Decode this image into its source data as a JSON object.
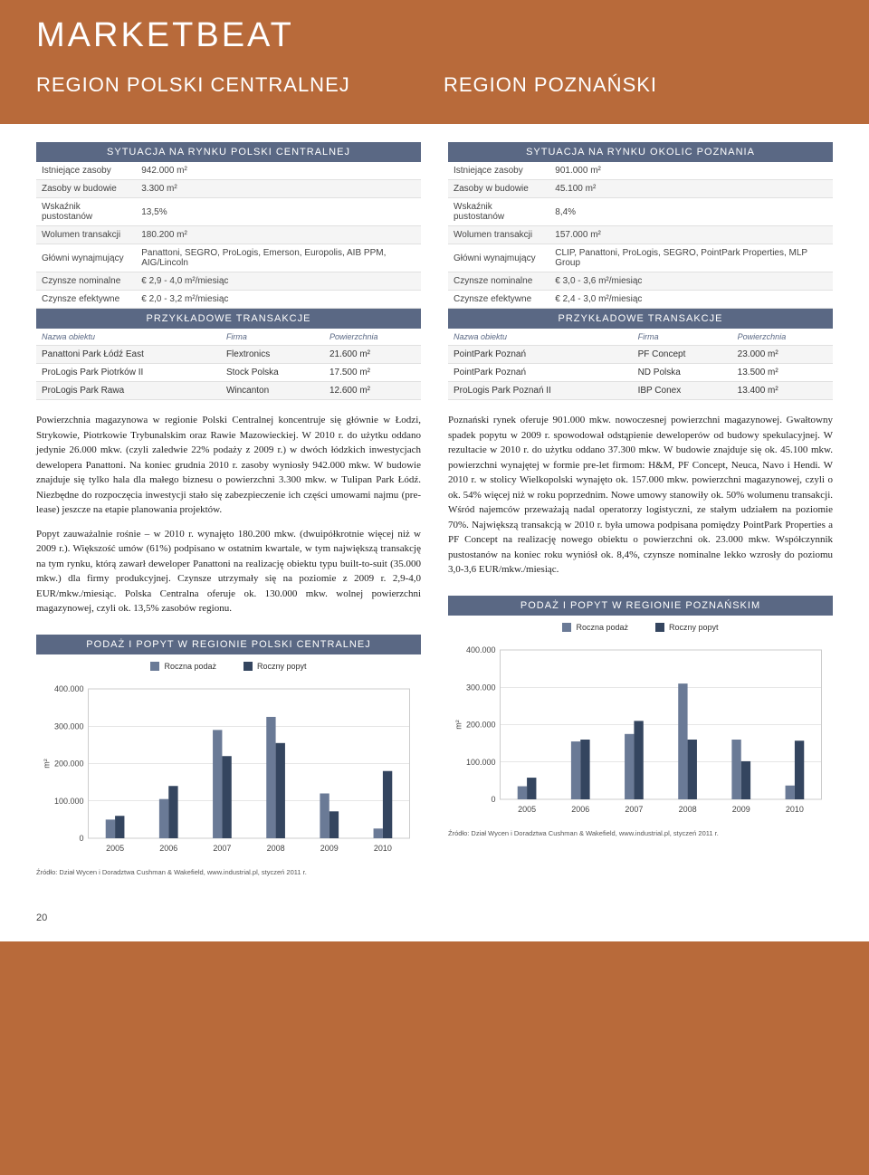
{
  "brand": "MARKETBEAT",
  "region_left_title": "REGION POLSKI CENTRALNEJ",
  "region_right_title": "REGION POZNAŃSKI",
  "page_number": "20",
  "left": {
    "section1_title": "SYTUACJA NA RYNKU POLSKI CENTRALNEJ",
    "stats": [
      {
        "label": "Istniejące zasoby",
        "value": "942.000 m²"
      },
      {
        "label": "Zasoby w budowie",
        "value": "3.300 m²"
      },
      {
        "label": "Wskaźnik pustostanów",
        "value": "13,5%"
      },
      {
        "label": "Wolumen transakcji",
        "value": "180.200 m²"
      },
      {
        "label": "Główni wynajmujący",
        "value": "Panattoni, SEGRO, ProLogis, Emerson, Europolis, AIB PPM, AIG/Lincoln"
      },
      {
        "label": "Czynsze nominalne",
        "value": "€ 2,9 - 4,0 m²/miesiąc"
      },
      {
        "label": "Czynsze efektywne",
        "value": "€ 2,0 - 3,2 m²/miesiąc"
      }
    ],
    "section2_title": "PRZYKŁADOWE TRANSAKCJE",
    "trans_header": {
      "c1": "Nazwa obiektu",
      "c2": "Firma",
      "c3": "Powierzchnia"
    },
    "trans": [
      {
        "c1": "Panattoni Park Łódź East",
        "c2": "Flextronics",
        "c3": "21.600 m²"
      },
      {
        "c1": "ProLogis Park Piotrków II",
        "c2": "Stock Polska",
        "c3": "17.500 m²"
      },
      {
        "c1": "ProLogis Park Rawa",
        "c2": "Wincanton",
        "c3": "12.600 m²"
      }
    ],
    "para1": "Powierzchnia magazynowa w regionie Polski Centralnej koncentruje się głównie w Łodzi, Strykowie, Piotrkowie Trybunalskim oraz Rawie Mazowieckiej. W 2010 r. do użytku oddano jedynie 26.000 mkw. (czyli zaledwie 22% podaży z 2009 r.) w dwóch łódzkich inwestycjach dewelopera Panattoni. Na koniec grudnia 2010 r. zasoby wyniosły 942.000 mkw. W budowie znajduje się tylko hala dla małego biznesu o powierzchni 3.300 mkw. w Tulipan Park Łódź. Niezbędne do rozpoczęcia inwestycji stało się zabezpieczenie ich części umowami najmu (pre-lease) jeszcze na etapie planowania projektów.",
    "para2": "Popyt zauważalnie rośnie – w 2010 r. wynajęto 180.200 mkw. (dwuipółkrotnie więcej niż w 2009 r.). Większość umów (61%) podpisano w ostatnim kwartale, w tym największą transakcję na tym rynku, którą zawarł deweloper Panattoni na realizację obiektu typu built-to-suit (35.000 mkw.) dla firmy produkcyjnej. Czynsze utrzymały się na poziomie z 2009 r. 2,9-4,0 EUR/mkw./miesiąc. Polska Centralna oferuje ok. 130.000 mkw. wolnej powierzchni magazynowej, czyli ok. 13,5% zasobów regionu.",
    "chart_title": "PODAŻ I POPYT W REGIONIE POLSKI CENTRALNEJ",
    "legend1": "Roczna podaż",
    "legend2": "Roczny popyt",
    "chart": {
      "type": "bar",
      "categories": [
        "2005",
        "2006",
        "2007",
        "2008",
        "2009",
        "2010"
      ],
      "supply": [
        50000,
        105000,
        290000,
        325000,
        120000,
        26000
      ],
      "demand": [
        60000,
        140000,
        220000,
        255000,
        72000,
        180000
      ],
      "supply_color": "#6a7a96",
      "demand_color": "#34455f",
      "background": "#ffffff",
      "border_color": "#cccccc",
      "ylim": [
        0,
        400000
      ],
      "ytick_step": 100000,
      "yticklabels": [
        "0",
        "100.000",
        "200.000",
        "300.000",
        "400.000"
      ],
      "ylabel": "m²",
      "bar_width": 0.35
    },
    "footnote": "Źródło: Dział Wycen i Doradztwa Cushman & Wakefield, www.industrial.pl, styczeń 2011 r."
  },
  "right": {
    "section1_title": "SYTUACJA NA RYNKU OKOLIC POZNANIA",
    "stats": [
      {
        "label": "Istniejące zasoby",
        "value": "901.000 m²"
      },
      {
        "label": "Zasoby w budowie",
        "value": "45.100 m²"
      },
      {
        "label": "Wskaźnik pustostanów",
        "value": "8,4%"
      },
      {
        "label": "Wolumen transakcji",
        "value": "157.000 m²"
      },
      {
        "label": "Główni wynajmujący",
        "value": "CLIP, Panattoni, ProLogis, SEGRO, PointPark Properties, MLP Group"
      },
      {
        "label": "Czynsze nominalne",
        "value": "€ 3,0 - 3,6 m²/miesiąc"
      },
      {
        "label": "Czynsze efektywne",
        "value": "€ 2,4 - 3,0 m²/miesiąc"
      }
    ],
    "section2_title": "PRZYKŁADOWE TRANSAKCJE",
    "trans_header": {
      "c1": "Nazwa obiektu",
      "c2": "Firma",
      "c3": "Powierzchnia"
    },
    "trans": [
      {
        "c1": "PointPark Poznań",
        "c2": "PF Concept",
        "c3": "23.000 m²"
      },
      {
        "c1": "PointPark Poznań",
        "c2": "ND Polska",
        "c3": "13.500 m²"
      },
      {
        "c1": "ProLogis Park Poznań II",
        "c2": "IBP Conex",
        "c3": "13.400 m²"
      }
    ],
    "para1": "Poznański rynek oferuje 901.000 mkw. nowoczesnej powierzchni magazynowej. Gwałtowny spadek popytu w 2009 r. spowodował odstąpienie deweloperów od budowy spekulacyjnej. W rezultacie w 2010 r. do użytku oddano 37.300 mkw. W budowie znajduje się ok. 45.100 mkw. powierzchni wynajętej w formie pre-let firmom: H&M, PF Concept, Neuca, Navo i Hendi. W 2010 r. w stolicy Wielkopolski wynajęto ok. 157.000 mkw. powierzchni magazynowej, czyli o ok. 54% więcej niż w roku poprzednim. Nowe umowy stanowiły ok. 50% wolumenu transakcji. Wśród najemców przeważają nadal operatorzy logistyczni, ze stałym udziałem na poziomie 70%. Największą transakcją w 2010 r. była umowa podpisana pomiędzy PointPark Properties a PF Concept na realizację nowego obiektu o powierzchni ok. 23.000 mkw. Współczynnik pustostanów na koniec roku wyniósł ok. 8,4%, czynsze nominalne lekko wzrosły do poziomu 3,0-3,6 EUR/mkw./miesiąc.",
    "chart_title": "PODAŻ I POPYT W REGIONIE POZNAŃSKIM",
    "legend1": "Roczna podaż",
    "legend2": "Roczny popyt",
    "chart": {
      "type": "bar",
      "categories": [
        "2005",
        "2006",
        "2007",
        "2008",
        "2009",
        "2010"
      ],
      "supply": [
        35000,
        155000,
        175000,
        310000,
        160000,
        37000
      ],
      "demand": [
        58000,
        160000,
        210000,
        160000,
        102000,
        157000
      ],
      "supply_color": "#6a7a96",
      "demand_color": "#34455f",
      "background": "#ffffff",
      "border_color": "#cccccc",
      "ylim": [
        0,
        400000
      ],
      "ytick_step": 100000,
      "yticklabels": [
        "0",
        "100.000",
        "200.000",
        "300.000",
        "400.000"
      ],
      "ylabel": "m²",
      "bar_width": 0.35
    },
    "footnote": "Źródło: Dział Wycen i Doradztwa Cushman & Wakefield, www.industrial.pl, styczeń 2011 r."
  }
}
